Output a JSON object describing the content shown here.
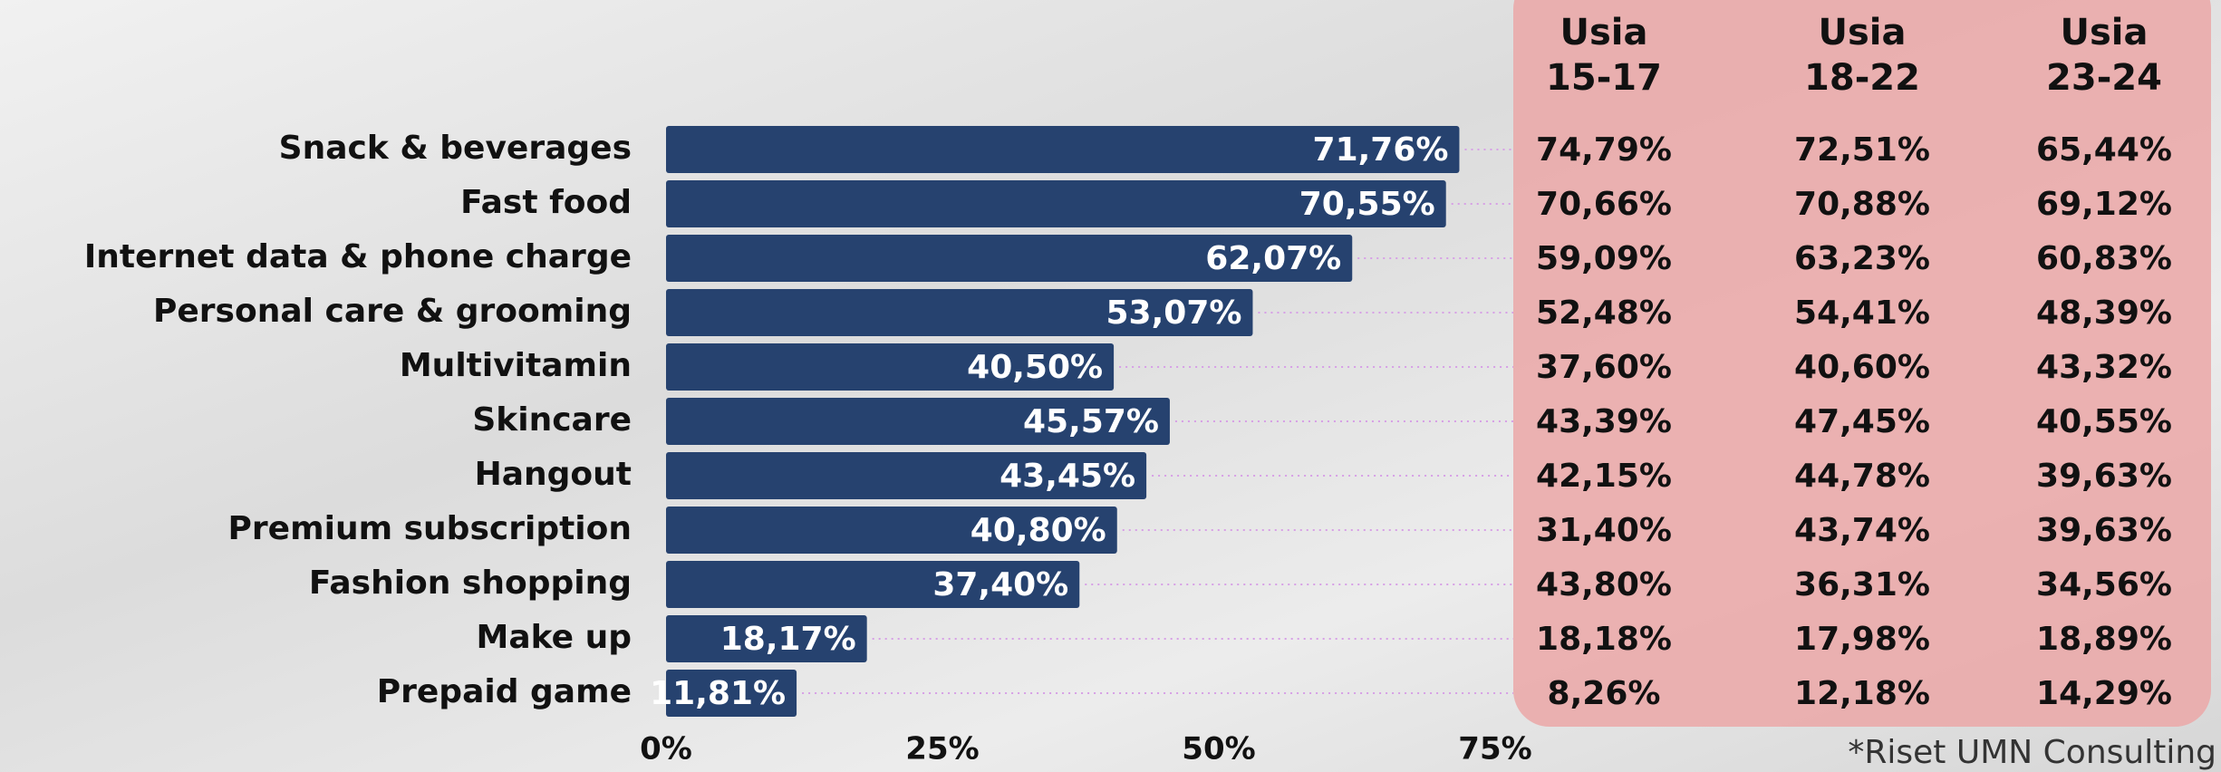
{
  "chart_data": {
    "type": "bar",
    "orientation": "horizontal",
    "categories": [
      "Snack & beverages",
      "Fast food",
      "Internet data & phone charge",
      "Personal care & grooming",
      "Multivitamin",
      "Skincare",
      "Hangout",
      "Premium subscription",
      "Fashion shopping",
      "Make up",
      "Prepaid game"
    ],
    "values": [
      71.76,
      70.55,
      62.07,
      53.07,
      40.5,
      45.57,
      43.45,
      40.8,
      37.4,
      18.17,
      11.81
    ],
    "value_labels": [
      "71,76%",
      "70,55%",
      "62,07%",
      "53,07%",
      "40,50%",
      "45,57%",
      "43,45%",
      "40,80%",
      "37,40%",
      "18,17%",
      "11,81%"
    ],
    "color": "#26426f",
    "xlim": [
      0,
      75
    ],
    "xticks": [
      {
        "value": 0,
        "label": "0%"
      },
      {
        "value": 25,
        "label": "25%"
      },
      {
        "value": 50,
        "label": "50%"
      },
      {
        "value": 75,
        "label": "75%"
      }
    ],
    "table": {
      "headers": [
        [
          "Usia",
          "15-17"
        ],
        [
          "Usia",
          "18-22"
        ],
        [
          "Usia",
          "23-24"
        ]
      ],
      "rows": [
        [
          "74,79%",
          "72,51%",
          "65,44%"
        ],
        [
          "70,66%",
          "70,88%",
          "69,12%"
        ],
        [
          "59,09%",
          "63,23%",
          "60,83%"
        ],
        [
          "52,48%",
          "54,41%",
          "48,39%"
        ],
        [
          "37,60%",
          "40,60%",
          "43,32%"
        ],
        [
          "43,39%",
          "47,45%",
          "40,55%"
        ],
        [
          "42,15%",
          "44,78%",
          "39,63%"
        ],
        [
          "31,40%",
          "43,74%",
          "39,63%"
        ],
        [
          "43,80%",
          "36,31%",
          "34,56%"
        ],
        [
          "18,18%",
          "17,98%",
          "18,89%"
        ],
        [
          "8,26%",
          "12,18%",
          "14,29%"
        ]
      ]
    },
    "footnote": "*Riset UMN Consulting"
  }
}
